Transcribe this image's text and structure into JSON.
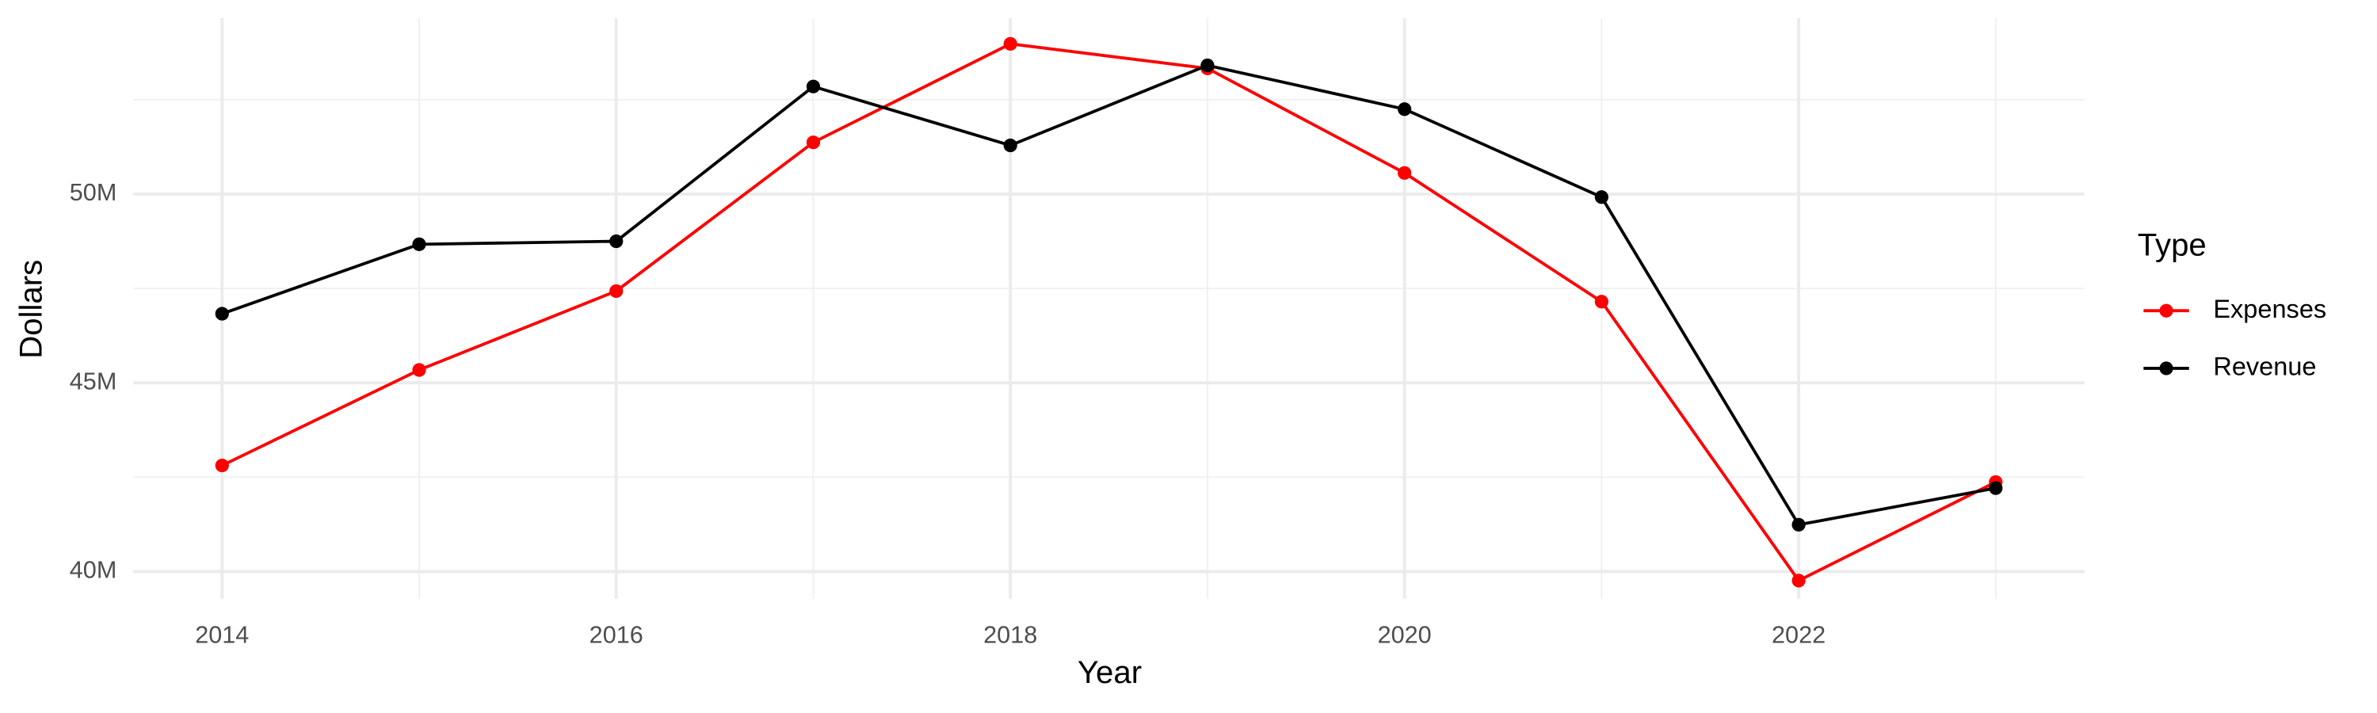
{
  "chart_data": {
    "type": "line",
    "x_label": "Year",
    "y_label": "Dollars",
    "legend_title": "Type",
    "x": [
      2014,
      2015,
      2016,
      2017,
      2018,
      2019,
      2020,
      2021,
      2022,
      2023
    ],
    "series": [
      {
        "name": "Expenses",
        "color": "#ff0000",
        "values": [
          42810000,
          45340000,
          47430000,
          51370000,
          53980000,
          53330000,
          50560000,
          47150000,
          39760000,
          42370000
        ]
      },
      {
        "name": "Revenue",
        "color": "#000000",
        "values": [
          46830000,
          48670000,
          48750000,
          52850000,
          51290000,
          53410000,
          52250000,
          49920000,
          41240000,
          42210000
        ]
      }
    ],
    "xlim": [
      2013.55,
      2023.45
    ],
    "xticks": [
      2014,
      2016,
      2018,
      2020,
      2022
    ],
    "ylim": [
      39280000,
      54660000
    ],
    "yticks": [
      {
        "value": 40000000,
        "label": "40M"
      },
      {
        "value": 45000000,
        "label": "45M"
      },
      {
        "value": 50000000,
        "label": "50M"
      }
    ],
    "grid": true,
    "legend": "right"
  }
}
